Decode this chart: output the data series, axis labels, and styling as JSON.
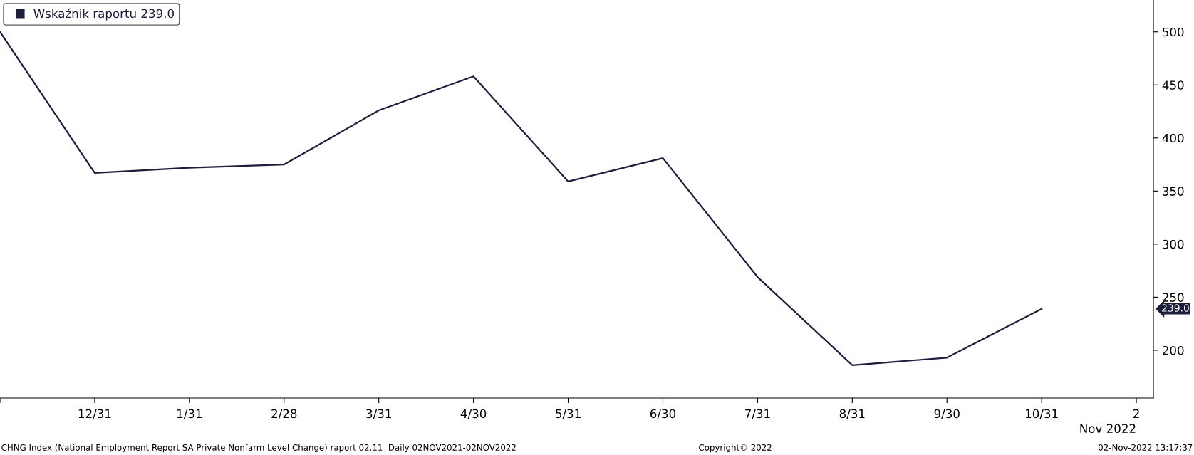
{
  "chart_data": {
    "type": "line",
    "categories": [
      null,
      "12/31",
      "1/31",
      "2/28",
      "3/31",
      "4/30",
      "5/31",
      "6/30",
      "7/31",
      "8/31",
      "9/30",
      "10/31",
      "2"
    ],
    "series": [
      {
        "name": "Wskaźnik raportu 239.0",
        "color": "#1b1f3b",
        "values": [
          500,
          367,
          372,
          375,
          426,
          458,
          359,
          381,
          269,
          186,
          193,
          239,
          null
        ]
      }
    ],
    "ylim": [
      155,
      530
    ],
    "yticks": [
      200,
      250,
      300,
      350,
      400,
      450,
      500
    ],
    "grid": false,
    "legend": "top left",
    "marker": "none",
    "line_style": "solid",
    "annotations": [
      "239.0",
      "Nov 2022",
      "CHNG Index (National Employment Report SA Private Nonfarm Level Change) raport 02.11  Daily 02NOV2021-02NOV2022",
      "Copyright© 2022",
      "02-Nov-2022 13:17:37"
    ]
  }
}
